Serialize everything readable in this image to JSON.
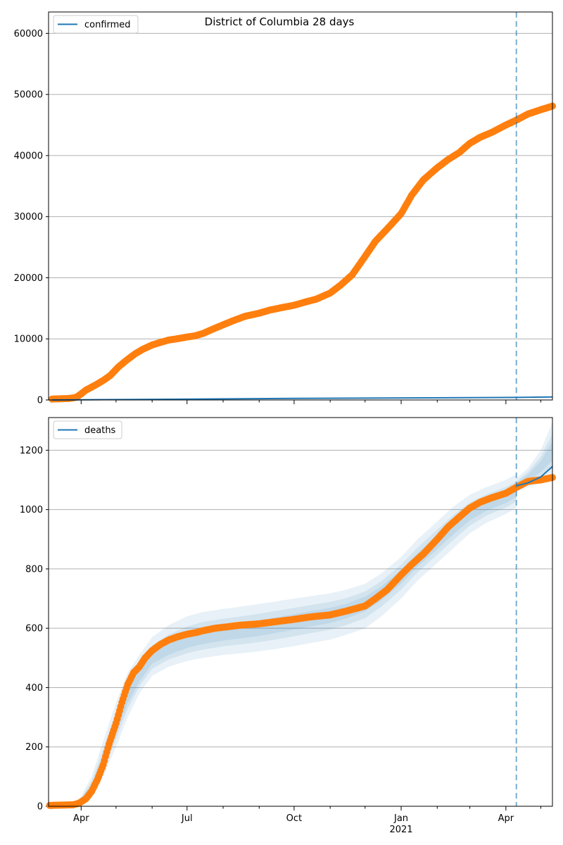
{
  "figure": {
    "title": "District of Columbia 28 days"
  },
  "chart_data": [
    {
      "type": "line",
      "legend": {
        "label": "confirmed",
        "placement": "top-left"
      },
      "ylim": [
        0,
        63500
      ],
      "yticks": [
        0,
        10000,
        20000,
        30000,
        40000,
        50000,
        60000
      ],
      "grid_y": true,
      "cutoff_date": "2021-04-10",
      "series": [
        {
          "name": "confirmed",
          "kind": "observed-points",
          "color": "#ff7f0e",
          "x": [
            "2020-03-07",
            "2020-03-15",
            "2020-03-22",
            "2020-03-28",
            "2020-04-01",
            "2020-04-05",
            "2020-04-12",
            "2020-04-20",
            "2020-04-26",
            "2020-05-03",
            "2020-05-10",
            "2020-05-17",
            "2020-05-24",
            "2020-06-01",
            "2020-06-08",
            "2020-06-15",
            "2020-06-22",
            "2020-07-01",
            "2020-07-08",
            "2020-07-15",
            "2020-07-22",
            "2020-08-01",
            "2020-08-10",
            "2020-08-20",
            "2020-09-01",
            "2020-09-10",
            "2020-09-20",
            "2020-10-01",
            "2020-10-10",
            "2020-10-20",
            "2020-11-01",
            "2020-11-10",
            "2020-11-20",
            "2020-12-01",
            "2020-12-10",
            "2020-12-20",
            "2021-01-01",
            "2021-01-10",
            "2021-01-20",
            "2021-02-01",
            "2021-02-10",
            "2021-02-20",
            "2021-03-01",
            "2021-03-10",
            "2021-03-20",
            "2021-04-01",
            "2021-04-10",
            "2021-04-20",
            "2021-05-01",
            "2021-05-11"
          ],
          "y": [
            150,
            200,
            250,
            450,
            1000,
            1600,
            2300,
            3200,
            4000,
            5400,
            6500,
            7500,
            8300,
            9000,
            9400,
            9800,
            10000,
            10300,
            10500,
            10900,
            11500,
            12300,
            13000,
            13700,
            14200,
            14700,
            15100,
            15500,
            16000,
            16500,
            17500,
            18800,
            20500,
            23500,
            26000,
            28000,
            30500,
            33500,
            36000,
            38000,
            39300,
            40500,
            42000,
            43000,
            43800,
            45000,
            45800,
            46800,
            47500,
            48100
          ]
        },
        {
          "name": "confirmed",
          "kind": "model-line",
          "color": "#1f77b4",
          "x": [
            "2020-03-07",
            "2020-06-01",
            "2020-10-01",
            "2021-01-01",
            "2021-04-10",
            "2021-05-11"
          ],
          "y": [
            0,
            100,
            250,
            330,
            420,
            500
          ]
        }
      ]
    },
    {
      "type": "line",
      "legend": {
        "label": "deaths",
        "placement": "top-left"
      },
      "ylim": [
        0,
        1310
      ],
      "yticks": [
        0,
        200,
        400,
        600,
        800,
        1000,
        1200
      ],
      "grid_y": true,
      "cutoff_date": "2021-04-10",
      "xticks": [
        "Apr",
        "Jul",
        "Oct",
        "Jan",
        "Apr"
      ],
      "xtick_dates": [
        "2020-04-01",
        "2020-07-01",
        "2020-10-01",
        "2021-01-01",
        "2021-04-01"
      ],
      "xtick_sublabel": "2021",
      "xlim": [
        "2020-03-04",
        "2021-05-11"
      ],
      "series": [
        {
          "name": "deaths",
          "kind": "observed-points",
          "color": "#ff7f0e",
          "x": [
            "2020-03-05",
            "2020-03-25",
            "2020-03-30",
            "2020-04-05",
            "2020-04-10",
            "2020-04-15",
            "2020-04-20",
            "2020-04-25",
            "2020-05-01",
            "2020-05-06",
            "2020-05-11",
            "2020-05-16",
            "2020-05-21",
            "2020-05-26",
            "2020-06-01",
            "2020-06-08",
            "2020-06-15",
            "2020-06-22",
            "2020-07-01",
            "2020-07-08",
            "2020-07-15",
            "2020-07-25",
            "2020-08-05",
            "2020-08-15",
            "2020-09-01",
            "2020-09-15",
            "2020-10-01",
            "2020-10-15",
            "2020-11-01",
            "2020-11-15",
            "2020-12-01",
            "2020-12-10",
            "2020-12-20",
            "2021-01-01",
            "2021-01-10",
            "2021-01-20",
            "2021-02-01",
            "2021-02-10",
            "2021-02-20",
            "2021-03-01",
            "2021-03-10",
            "2021-03-20",
            "2021-04-01",
            "2021-04-10",
            "2021-04-20",
            "2021-05-01",
            "2021-05-11"
          ],
          "y": [
            3,
            5,
            10,
            25,
            50,
            90,
            140,
            210,
            280,
            350,
            410,
            450,
            470,
            500,
            525,
            545,
            560,
            570,
            580,
            585,
            592,
            600,
            605,
            610,
            615,
            622,
            630,
            638,
            645,
            658,
            675,
            700,
            730,
            780,
            815,
            850,
            900,
            940,
            975,
            1005,
            1025,
            1040,
            1055,
            1075,
            1095,
            1100,
            1108
          ]
        },
        {
          "name": "deaths",
          "kind": "model-line",
          "color": "#1f77b4",
          "x": [
            "2021-04-10",
            "2021-04-20",
            "2021-05-01",
            "2021-05-11"
          ],
          "y": [
            1080,
            1090,
            1110,
            1145
          ]
        }
      ],
      "bands": {
        "color": "#1f77b4",
        "x": [
          "2020-03-30",
          "2020-04-10",
          "2020-04-20",
          "2020-05-01",
          "2020-05-11",
          "2020-05-21",
          "2020-06-01",
          "2020-06-15",
          "2020-07-01",
          "2020-07-15",
          "2020-08-01",
          "2020-08-15",
          "2020-09-01",
          "2020-09-15",
          "2020-10-01",
          "2020-10-15",
          "2020-11-01",
          "2020-11-15",
          "2020-12-01",
          "2020-12-15",
          "2021-01-01",
          "2021-01-15",
          "2021-02-01",
          "2021-02-15",
          "2021-03-01",
          "2021-03-15",
          "2021-04-01",
          "2021-04-10"
        ],
        "center": [
          10,
          60,
          150,
          270,
          370,
          440,
          500,
          530,
          555,
          570,
          582,
          590,
          600,
          610,
          622,
          633,
          645,
          660,
          685,
          720,
          775,
          830,
          890,
          940,
          985,
          1015,
          1040,
          1060
        ],
        "upper": [
          20,
          100,
          220,
          350,
          450,
          510,
          570,
          610,
          640,
          655,
          665,
          672,
          682,
          690,
          700,
          708,
          718,
          730,
          750,
          785,
          840,
          900,
          960,
          1010,
          1050,
          1075,
          1100,
          1120
        ],
        "lower": [
          0,
          30,
          100,
          200,
          300,
          380,
          440,
          470,
          490,
          500,
          510,
          515,
          522,
          530,
          540,
          550,
          562,
          578,
          600,
          640,
          700,
          760,
          820,
          870,
          920,
          955,
          985,
          1005
        ],
        "forecast_x": [
          "2021-04-10",
          "2021-04-20",
          "2021-05-01",
          "2021-05-11"
        ],
        "forecast_upper": [
          1105,
          1140,
          1200,
          1295
        ],
        "forecast_lower": [
          1060,
          1075,
          1090,
          1100
        ]
      }
    }
  ]
}
